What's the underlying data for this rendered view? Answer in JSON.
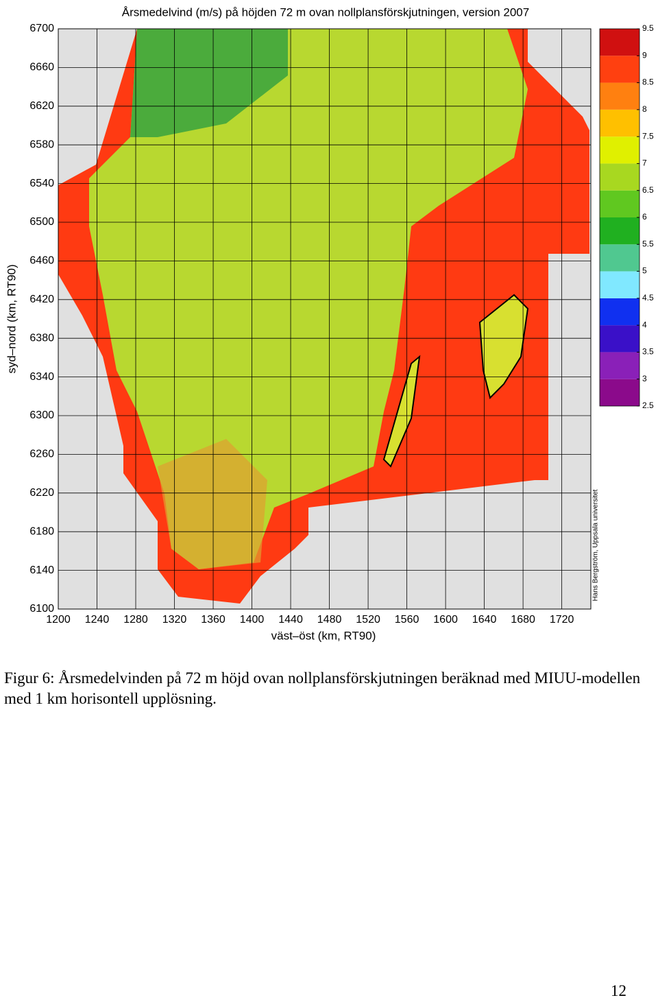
{
  "figure": {
    "title": "Årsmedelvind (m/s) på höjden 72 m ovan nollplansförskjutningen, version 2007",
    "xlabel": "väst–öst (km, RT90)",
    "ylabel": "syd–nord (km, RT90)",
    "xlim": [
      1200,
      1750
    ],
    "ylim": [
      6100,
      6700
    ],
    "xticks": [
      1200,
      1240,
      1280,
      1320,
      1360,
      1400,
      1440,
      1480,
      1520,
      1560,
      1600,
      1640,
      1680,
      1720
    ],
    "yticks": [
      6100,
      6140,
      6180,
      6220,
      6260,
      6300,
      6340,
      6380,
      6420,
      6460,
      6500,
      6540,
      6580,
      6620,
      6660,
      6700
    ],
    "grid": true,
    "colorbar": {
      "ticks": [
        2.5,
        3,
        3.5,
        4,
        4.5,
        5,
        5.5,
        6,
        6.5,
        7,
        7.5,
        8,
        8.5,
        9,
        9.5
      ],
      "colors": [
        "#8b0a8b",
        "#8a20b8",
        "#3a10c8",
        "#1030f0",
        "#80e8ff",
        "#50c890",
        "#20b020",
        "#60c820",
        "#a8d820",
        "#e0f000",
        "#ffc000",
        "#ff8010",
        "#ff4010",
        "#d01010"
      ]
    },
    "credit": "Hans Bergström, Uppsala universitet"
  },
  "caption": "Figur 6: Årsmedelvinden på 72 m höjd ovan nollplansförskjutningen beräknad med MIUU-modellen med 1 km horisontell upplösning.",
  "page_number": "12"
}
